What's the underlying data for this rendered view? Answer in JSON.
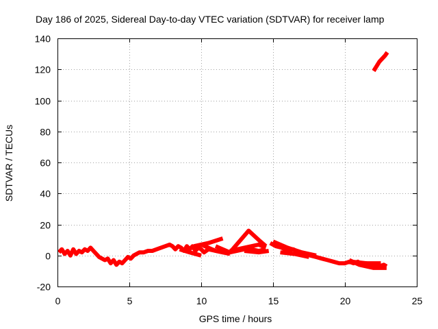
{
  "chart_data": {
    "type": "line",
    "title": "Day 186 of 2025, Sidereal Day-to-day VTEC variation (SDTVAR) for receiver lamp",
    "xlabel": "GPS time / hours",
    "ylabel": "SDTVAR / TECUs",
    "xlim": [
      0,
      25
    ],
    "ylim": [
      -20,
      140
    ],
    "xticks": [
      0,
      5,
      10,
      15,
      20,
      25
    ],
    "yticks": [
      -20,
      0,
      20,
      40,
      60,
      80,
      100,
      120,
      140
    ],
    "grid": true,
    "series": [
      {
        "name": "SDTVAR",
        "color": "#ff0000",
        "segments": [
          [
            [
              0.1,
              2
            ],
            [
              0.3,
              4
            ],
            [
              0.5,
              1
            ],
            [
              0.7,
              3
            ],
            [
              0.9,
              0
            ],
            [
              1.1,
              4
            ],
            [
              1.3,
              1
            ],
            [
              1.5,
              3
            ],
            [
              1.7,
              2
            ],
            [
              1.9,
              4
            ],
            [
              2.1,
              3
            ],
            [
              2.3,
              5
            ],
            [
              2.5,
              3
            ],
            [
              2.7,
              1
            ],
            [
              2.9,
              -1
            ],
            [
              3.1,
              -2
            ],
            [
              3.3,
              -3
            ],
            [
              3.5,
              -2
            ],
            [
              3.7,
              -5
            ],
            [
              3.9,
              -3
            ],
            [
              4.1,
              -6
            ],
            [
              4.3,
              -4
            ],
            [
              4.5,
              -5
            ],
            [
              4.7,
              -3
            ],
            [
              4.9,
              -1
            ],
            [
              5.1,
              -2
            ],
            [
              5.3,
              0
            ],
            [
              5.5,
              1
            ],
            [
              5.7,
              2
            ],
            [
              6.0,
              2
            ],
            [
              6.3,
              3
            ],
            [
              6.6,
              3
            ],
            [
              6.9,
              4
            ],
            [
              7.2,
              5
            ],
            [
              7.5,
              6
            ],
            [
              7.8,
              7
            ],
            [
              8.0,
              6
            ],
            [
              8.2,
              4
            ],
            [
              8.4,
              6
            ],
            [
              8.6,
              5
            ],
            [
              8.8,
              3
            ],
            [
              9.0,
              6
            ],
            [
              9.2,
              4
            ],
            [
              9.4,
              6
            ],
            [
              9.6,
              3
            ],
            [
              9.8,
              5
            ],
            [
              10.0,
              4
            ],
            [
              10.2,
              2
            ],
            [
              10.5,
              4
            ],
            [
              11.0,
              3
            ],
            [
              11.5,
              2
            ],
            [
              12.0,
              2
            ],
            [
              12.5,
              3
            ],
            [
              13.0,
              4
            ],
            [
              13.5,
              4
            ],
            [
              14.0,
              3
            ],
            [
              14.5,
              4
            ]
          ],
          [
            [
              8.5,
              4
            ],
            [
              9.2,
              2
            ],
            [
              10.0,
              0
            ]
          ],
          [
            [
              9.5,
              6
            ],
            [
              10.5,
              8
            ],
            [
              11.5,
              11
            ]
          ],
          [
            [
              10.0,
              7
            ],
            [
              11.0,
              3
            ],
            [
              12.0,
              1
            ]
          ],
          [
            [
              11.0,
              6
            ],
            [
              12.0,
              2
            ],
            [
              13.3,
              16
            ],
            [
              14.0,
              10
            ],
            [
              14.5,
              6
            ]
          ],
          [
            [
              12.0,
              3
            ],
            [
              13.0,
              5
            ],
            [
              14.0,
              7
            ],
            [
              14.5,
              5
            ]
          ],
          [
            [
              13.0,
              3
            ],
            [
              14.0,
              2
            ],
            [
              14.7,
              3
            ]
          ],
          [
            [
              14.8,
              8
            ],
            [
              15.2,
              6
            ],
            [
              15.6,
              5
            ],
            [
              16.0,
              3
            ],
            [
              16.4,
              4
            ],
            [
              16.8,
              2
            ],
            [
              17.2,
              1
            ],
            [
              17.6,
              0
            ],
            [
              18.0,
              -1
            ],
            [
              18.4,
              -2
            ],
            [
              18.8,
              -3
            ],
            [
              19.2,
              -4
            ],
            [
              19.6,
              -5
            ],
            [
              20.0,
              -5
            ],
            [
              20.3,
              -4
            ],
            [
              20.6,
              -5
            ],
            [
              20.9,
              -4
            ],
            [
              21.2,
              -6
            ],
            [
              21.5,
              -5
            ],
            [
              21.8,
              -7
            ],
            [
              22.1,
              -6
            ],
            [
              22.4,
              -7
            ],
            [
              22.7,
              -6
            ],
            [
              22.9,
              -7
            ]
          ],
          [
            [
              15.0,
              9
            ],
            [
              16.0,
              5
            ],
            [
              17.0,
              2
            ],
            [
              18.0,
              0
            ]
          ],
          [
            [
              15.5,
              2
            ],
            [
              16.5,
              1
            ],
            [
              17.5,
              -1
            ]
          ],
          [
            [
              20.5,
              -4
            ],
            [
              21.5,
              -5
            ],
            [
              22.5,
              -5
            ]
          ],
          [
            [
              20.3,
              -3
            ],
            [
              21.0,
              -6
            ],
            [
              22.0,
              -8
            ],
            [
              22.9,
              -8
            ]
          ],
          [
            [
              22.0,
              119
            ],
            [
              22.2,
              122
            ],
            [
              22.4,
              125
            ],
            [
              22.6,
              127
            ],
            [
              22.8,
              129
            ],
            [
              22.95,
              131
            ]
          ]
        ]
      }
    ]
  }
}
